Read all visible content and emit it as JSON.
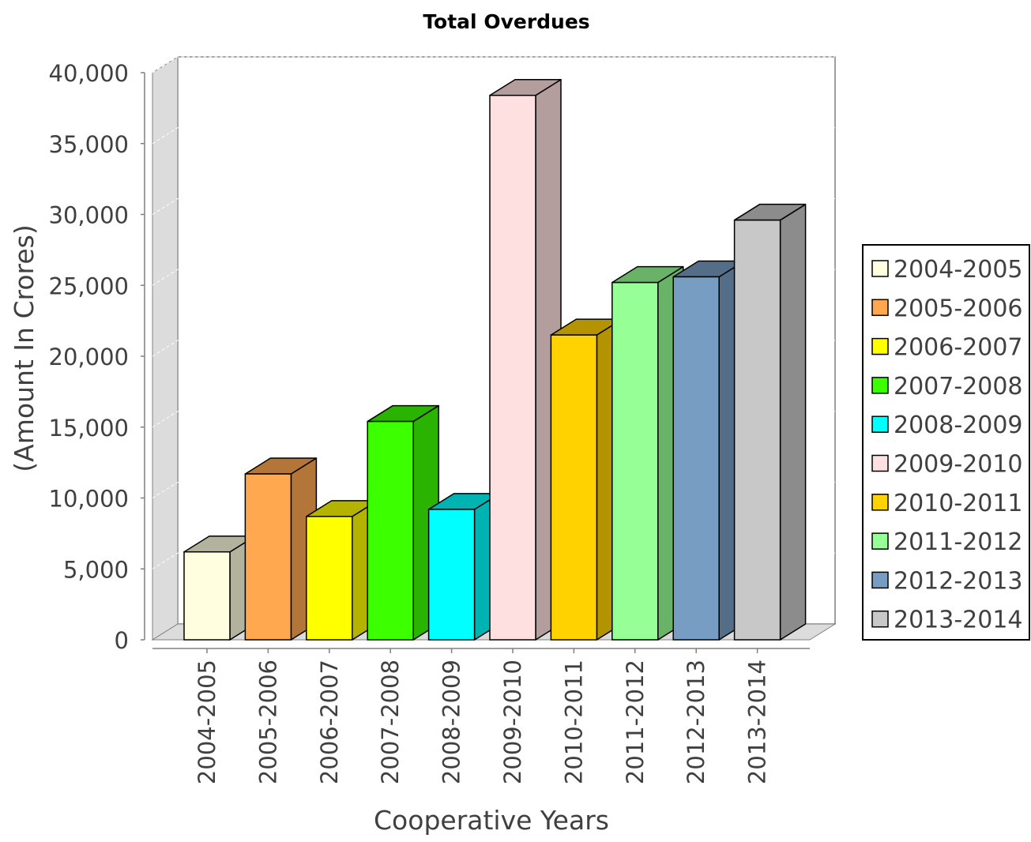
{
  "chart_data": {
    "type": "bar",
    "title": "Total Overdues",
    "xlabel": "Cooperative Years",
    "ylabel": "(Amount In Crores)",
    "categories": [
      "2004-2005",
      "2005-2006",
      "2006-2007",
      "2007-2008",
      "2008-2009",
      "2009-2010",
      "2010-2011",
      "2011-2012",
      "2012-2013",
      "2013-2014"
    ],
    "values": [
      6200,
      11700,
      8700,
      15400,
      9200,
      38400,
      21500,
      25200,
      25600,
      29600
    ],
    "ylim": [
      0,
      40000
    ],
    "yticks": [
      0,
      5000,
      10000,
      15000,
      20000,
      25000,
      30000,
      35000,
      40000
    ],
    "ytick_labels": [
      "0",
      "5,000",
      "10,000",
      "15,000",
      "20,000",
      "25,000",
      "30,000",
      "35,000",
      "40,000"
    ],
    "legend_position": "right",
    "legend": [
      "2004-2005",
      "2005-2006",
      "2006-2007",
      "2007-2008",
      "2008-2009",
      "2009-2010",
      "2010-2011",
      "2011-2012",
      "2012-2013",
      "2013-2014"
    ],
    "colors": [
      "#FFFFE0",
      "#FFA850",
      "#FFFF00",
      "#3CFF00",
      "#00FFFF",
      "#FFE0E0",
      "#FFD200",
      "#96FF96",
      "#789DC3",
      "#C8C8C8"
    ],
    "render_3d": true,
    "grid": true
  }
}
